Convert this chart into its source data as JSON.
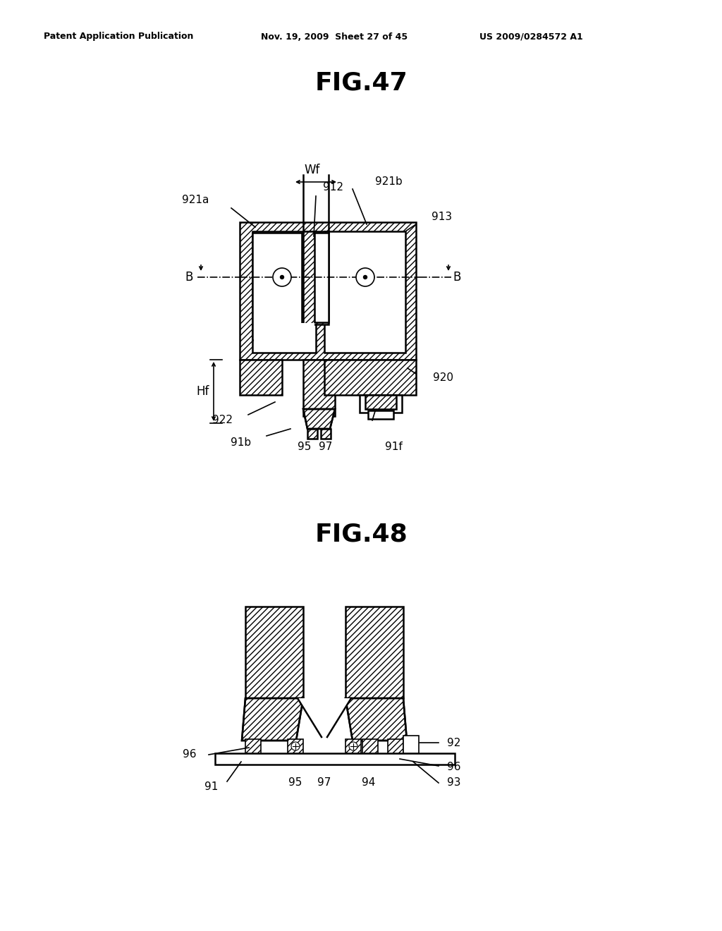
{
  "bg_color": "#ffffff",
  "header_text": "Patent Application Publication",
  "header_date": "Nov. 19, 2009  Sheet 27 of 45",
  "header_patent": "US 2009/0284572 A1",
  "fig47_title": "FIG.47",
  "fig48_title": "FIG.48"
}
